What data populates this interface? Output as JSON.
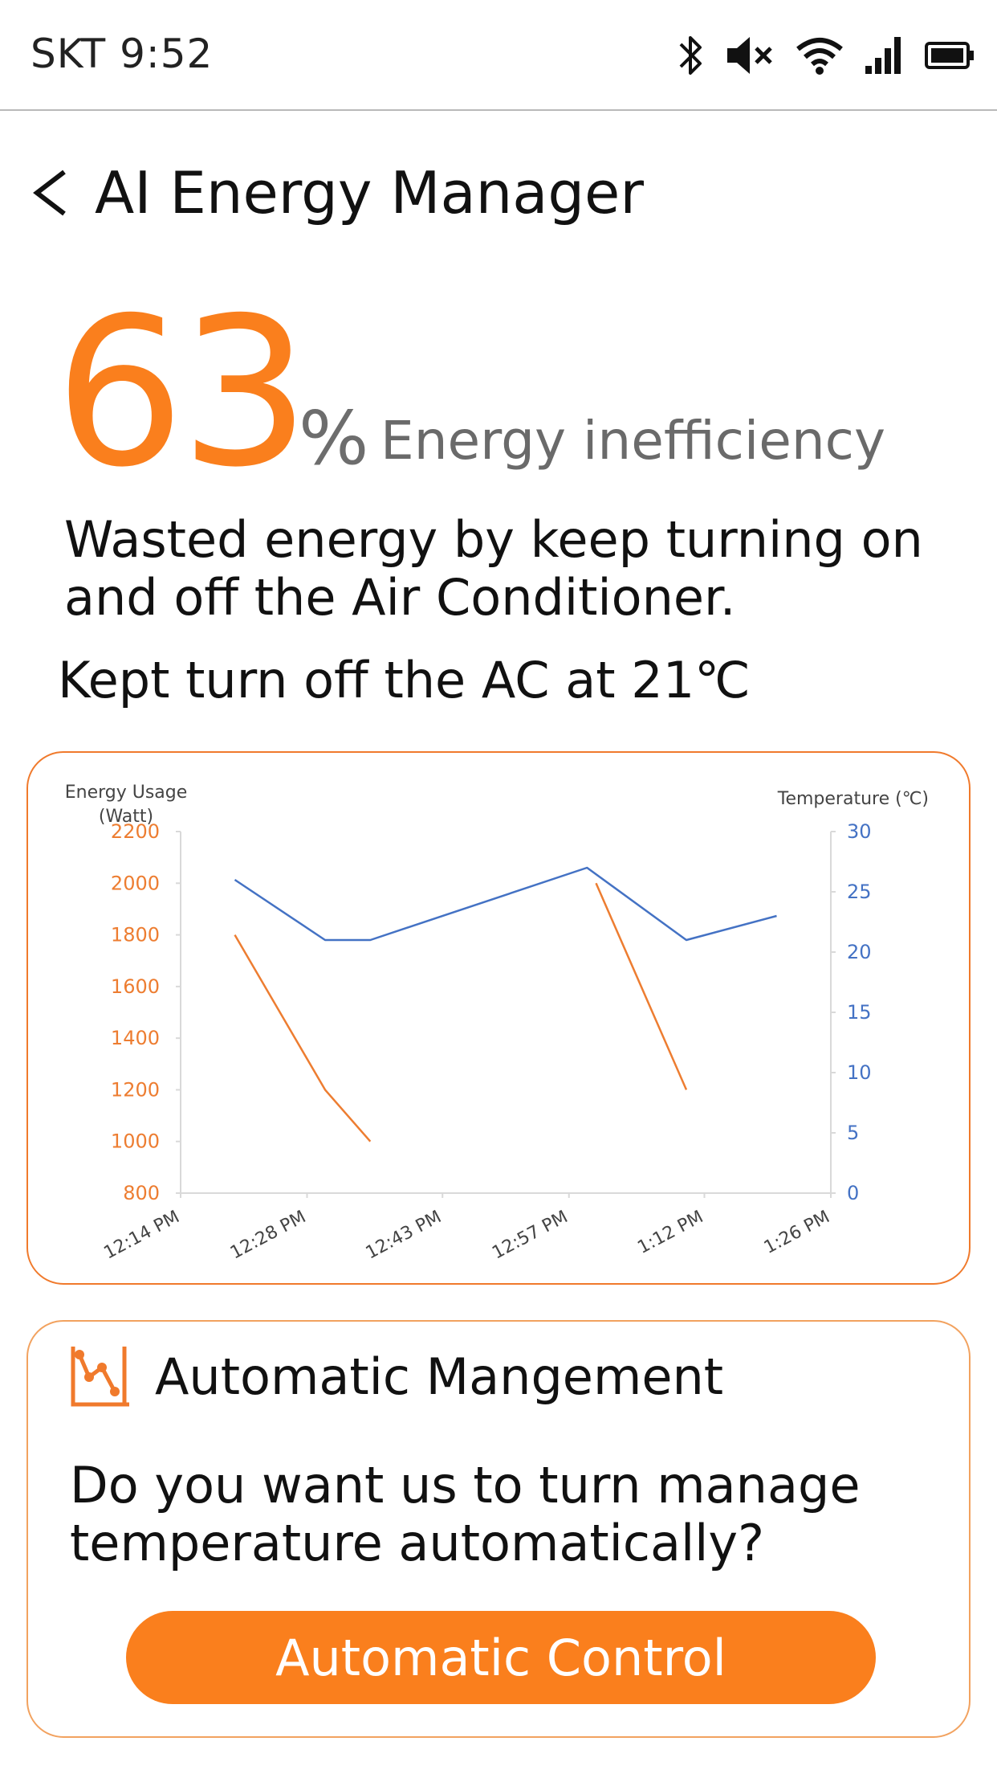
{
  "status_bar": {
    "carrier_time": "SKT 9:52",
    "icons": [
      "bluetooth-icon",
      "mute-icon",
      "wifi-icon",
      "signal-icon",
      "battery-icon"
    ]
  },
  "header": {
    "back_icon": "chevron-left-icon",
    "title": "AI Energy Manager"
  },
  "summary": {
    "percent_value": "63",
    "percent_sign": "%",
    "label": "Energy inefficiency",
    "description": "Wasted energy by keep turning on and off the Air Conditioner.",
    "kept_note": "Kept turn off the AC at 21℃"
  },
  "colors": {
    "accent": "#fa7f1d",
    "energy_series": "#ed7d31",
    "temperature_series": "#4472c4"
  },
  "chart_data": {
    "type": "line",
    "ylabel_left": [
      "Energy Usage",
      "(Watt)"
    ],
    "ylabel_right": "Temperature (℃)",
    "x_tick_labels": [
      "12:14 PM",
      "12:28 PM",
      "12:43 PM",
      "12:57 PM",
      "1:12 PM",
      "1:26 PM"
    ],
    "ylim_left": [
      800,
      2200
    ],
    "yticks_left": [
      800,
      1000,
      1200,
      1400,
      1600,
      1800,
      2000,
      2200
    ],
    "ylim_right": [
      0,
      30
    ],
    "yticks_right": [
      0,
      5,
      10,
      15,
      20,
      25,
      30
    ],
    "grid": false,
    "series": [
      {
        "axis": "left",
        "color": "#ed7d31",
        "segments": [
          [
            {
              "x": "12:20 PM",
              "y": 1800
            },
            {
              "x": "12:30 PM",
              "y": 1200
            },
            {
              "x": "12:35 PM",
              "y": 1000
            }
          ],
          [
            {
              "x": "1:00 PM",
              "y": 2000
            },
            {
              "x": "1:10 PM",
              "y": 1200
            }
          ]
        ]
      },
      {
        "axis": "right",
        "color": "#4472c4",
        "segments": [
          [
            {
              "x": "12:20 PM",
              "y": 26
            },
            {
              "x": "12:30 PM",
              "y": 21
            },
            {
              "x": "12:35 PM",
              "y": 21
            },
            {
              "x": "12:59 PM",
              "y": 27
            },
            {
              "x": "1:10 PM",
              "y": 21
            },
            {
              "x": "1:20 PM",
              "y": 23
            }
          ]
        ]
      }
    ]
  },
  "automatic": {
    "icon": "chart-line-icon",
    "title": "Automatic Mangement",
    "question": "Do you want us to turn manage temperature automatically?",
    "button_label": "Automatic Control"
  }
}
